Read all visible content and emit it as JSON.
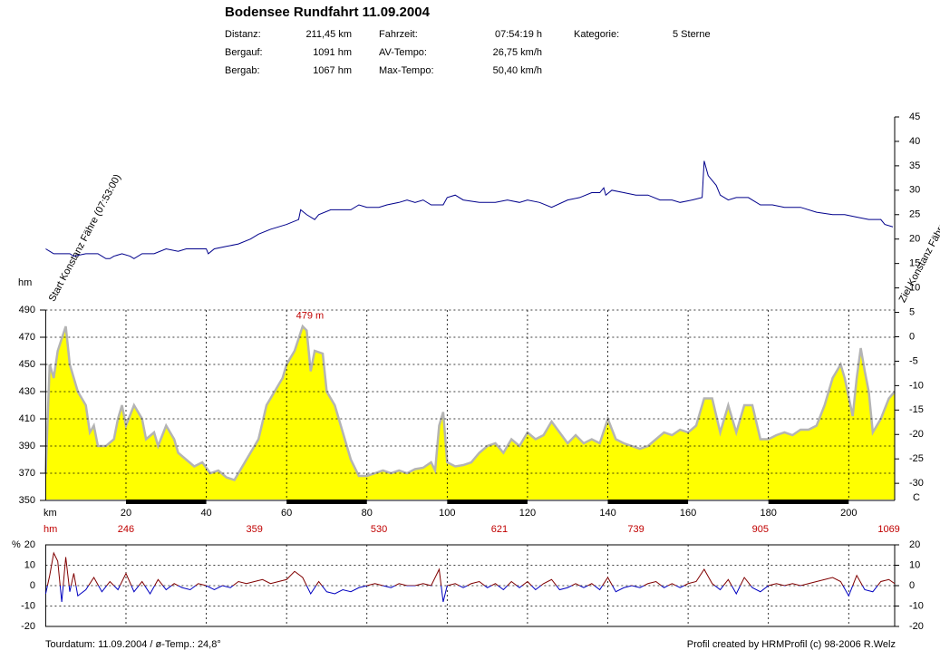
{
  "header": {
    "title": "Bodensee Rundfahrt 11.09.2004",
    "stats": [
      [
        {
          "label": "Distanz:",
          "value": "211,45 km"
        },
        {
          "label": "Fahrzeit:",
          "value": "07:54:19 h"
        },
        {
          "label": "Kategorie:",
          "value": "5 Sterne"
        }
      ],
      [
        {
          "label": "Bergauf:",
          "value": "1091 hm"
        },
        {
          "label": "AV-Tempo:",
          "value": "26,75 km/h"
        }
      ],
      [
        {
          "label": "Bergab:",
          "value": "1067 hm"
        },
        {
          "label": "Max-Tempo:",
          "value": "50,40 km/h"
        }
      ]
    ]
  },
  "start_label": "Start Konstanz Fähre (07:53:00)",
  "end_label": "Ziel Konstanz Fähre",
  "chart_data": [
    {
      "type": "area",
      "ylabel": "hm",
      "xlabel": "km",
      "color": "#ffff00",
      "line_color": "#b4b4b4",
      "xlim": [
        0,
        211.45
      ],
      "xticks": [
        20,
        40,
        60,
        80,
        100,
        120,
        140,
        160,
        180,
        200
      ],
      "ylim": [
        350,
        490
      ],
      "yticks": [
        350,
        370,
        390,
        410,
        430,
        450,
        470,
        490
      ],
      "grid": true,
      "x": [
        0,
        1,
        2,
        3,
        5,
        6,
        8,
        10,
        11,
        12,
        13,
        15,
        17,
        18,
        19,
        20,
        22,
        24,
        25,
        27,
        28,
        30,
        32,
        33,
        35,
        37,
        39,
        41,
        43,
        45,
        47,
        49,
        51,
        53,
        55,
        57,
        59,
        60,
        62,
        64,
        65,
        66,
        67,
        69,
        70,
        72,
        74,
        76,
        78,
        80,
        82,
        84,
        86,
        88,
        90,
        92,
        94,
        96,
        97,
        98,
        99,
        100,
        102,
        104,
        106,
        108,
        110,
        112,
        114,
        116,
        118,
        120,
        122,
        124,
        126,
        128,
        130,
        132,
        134,
        136,
        138,
        140,
        142,
        144,
        146,
        148,
        150,
        152,
        154,
        156,
        158,
        160,
        162,
        164,
        166,
        168,
        170,
        172,
        174,
        176,
        178,
        180,
        182,
        184,
        186,
        188,
        190,
        192,
        194,
        196,
        198,
        199,
        201,
        202,
        203,
        204,
        205,
        206,
        208,
        210,
        211.45
      ],
      "values": [
        370,
        450,
        440,
        460,
        478,
        450,
        430,
        420,
        400,
        405,
        390,
        390,
        395,
        410,
        420,
        405,
        420,
        410,
        395,
        400,
        390,
        405,
        395,
        385,
        380,
        375,
        378,
        370,
        372,
        367,
        365,
        375,
        385,
        395,
        420,
        430,
        440,
        450,
        460,
        478,
        475,
        445,
        460,
        458,
        430,
        420,
        400,
        380,
        368,
        368,
        370,
        372,
        370,
        372,
        370,
        373,
        374,
        378,
        372,
        405,
        415,
        378,
        375,
        376,
        378,
        385,
        390,
        392,
        385,
        395,
        390,
        400,
        395,
        398,
        408,
        400,
        392,
        398,
        392,
        395,
        392,
        410,
        395,
        392,
        390,
        388,
        390,
        395,
        400,
        398,
        402,
        400,
        405,
        425,
        425,
        400,
        420,
        400,
        420,
        420,
        395,
        395,
        398,
        400,
        398,
        402,
        402,
        405,
        420,
        440,
        450,
        440,
        412,
        440,
        462,
        445,
        430,
        400,
        410,
        425,
        430
      ],
      "annotation": {
        "text": "479 m",
        "km": 64,
        "hm": 479
      },
      "climb_marks": {
        "label": "hm",
        "km": [
          20,
          52,
          83,
          113,
          147,
          178,
          210
        ],
        "values": [
          246,
          359,
          530,
          621,
          739,
          905,
          1069
        ]
      }
    },
    {
      "type": "line",
      "color": "#00008b",
      "y2label": "C",
      "xlim": [
        0,
        211.45
      ],
      "y2lim": [
        -33.5,
        45
      ],
      "y2ticks": [
        45,
        40,
        35,
        30,
        25,
        20,
        15,
        10,
        5,
        0,
        -5,
        -10,
        -15,
        -20,
        -25,
        -30
      ],
      "series": [
        {
          "axis": "y2",
          "x": [
            0,
            1,
            2,
            6,
            7,
            10,
            13,
            14,
            15,
            16,
            17,
            19,
            21,
            22,
            24,
            27,
            30,
            33,
            35,
            40,
            40.5,
            42,
            45,
            48,
            51,
            53,
            56,
            60,
            63,
            63.5,
            65,
            67,
            68,
            71,
            76,
            78,
            80,
            83,
            85,
            88,
            90,
            92,
            94,
            96,
            99,
            100,
            102,
            104,
            108,
            112,
            115,
            118,
            120,
            123,
            126,
            130,
            133,
            136,
            138,
            139,
            139.5,
            141,
            144,
            147,
            150,
            153,
            156,
            158,
            161,
            163.5,
            164,
            165,
            166,
            167,
            168,
            170,
            172,
            175,
            178,
            181,
            184,
            188,
            192,
            196,
            199,
            202,
            205,
            208,
            209,
            211
          ],
          "values": [
            18,
            17.5,
            17,
            17,
            16.5,
            17,
            17,
            16.5,
            16,
            16,
            16.5,
            17,
            16.5,
            16,
            17,
            17,
            18,
            17.5,
            18,
            18,
            17,
            18,
            18.5,
            19,
            20,
            21,
            22,
            23,
            24,
            26,
            25,
            24,
            25,
            26,
            26,
            27,
            26.5,
            26.5,
            27,
            27.5,
            28,
            27.5,
            28,
            27,
            27,
            28.5,
            29,
            28,
            27.5,
            27.5,
            28,
            27.5,
            28,
            27.5,
            26.5,
            28,
            28.5,
            29.5,
            29.5,
            30.5,
            29,
            30,
            29.5,
            29,
            29,
            28,
            28,
            27.5,
            28,
            28.5,
            36,
            33,
            32,
            31,
            29,
            28,
            28.5,
            28.5,
            27,
            27,
            26.5,
            26.5,
            25.5,
            25,
            25,
            24.5,
            24,
            24,
            23,
            22.5
          ]
        }
      ]
    },
    {
      "type": "gradient",
      "ylabel": "%",
      "color": "#800000",
      "negative_color": "#0000c0",
      "xlim": [
        0,
        211.45
      ],
      "ylim": [
        -20,
        20
      ],
      "yticks": [
        20,
        10,
        0,
        -10,
        -20
      ],
      "y2lim": [
        -20,
        20
      ],
      "y2ticks": [
        20,
        10,
        0,
        -10,
        -20
      ],
      "grid": true,
      "x": [
        0,
        1,
        2,
        3,
        4,
        5,
        6,
        7,
        8,
        10,
        12,
        14,
        16,
        18,
        20,
        22,
        24,
        26,
        28,
        30,
        32,
        34,
        36,
        38,
        40,
        42,
        44,
        46,
        48,
        50,
        52,
        54,
        56,
        58,
        60,
        62,
        64,
        66,
        68,
        70,
        72,
        74,
        76,
        78,
        80,
        82,
        84,
        86,
        88,
        90,
        92,
        94,
        96,
        98,
        99,
        100,
        102,
        104,
        106,
        108,
        110,
        112,
        114,
        116,
        118,
        120,
        122,
        124,
        126,
        128,
        130,
        132,
        134,
        136,
        138,
        140,
        142,
        144,
        146,
        148,
        150,
        152,
        154,
        156,
        158,
        160,
        162,
        164,
        166,
        168,
        170,
        172,
        174,
        176,
        178,
        180,
        182,
        184,
        186,
        188,
        190,
        192,
        194,
        196,
        198,
        200,
        202,
        204,
        206,
        208,
        210,
        211.45
      ],
      "values": [
        -4,
        5,
        16,
        12,
        -8,
        14,
        -3,
        6,
        -5,
        -2,
        4,
        -3,
        2,
        -2,
        6,
        -3,
        2,
        -4,
        3,
        -2,
        1,
        -1,
        -2,
        1,
        0,
        -2,
        0,
        -1,
        2,
        1,
        2,
        3,
        1,
        2,
        3,
        7,
        4,
        -4,
        2,
        -3,
        -4,
        -2,
        -3,
        -1,
        0,
        1,
        0,
        -1,
        1,
        0,
        0,
        1,
        0,
        8,
        -8,
        0,
        1,
        -1,
        1,
        2,
        -1,
        1,
        -2,
        2,
        -1,
        2,
        -2,
        1,
        3,
        -2,
        -1,
        1,
        -1,
        1,
        -2,
        4,
        -3,
        -1,
        0,
        -1,
        1,
        2,
        -1,
        1,
        -1,
        1,
        2,
        8,
        1,
        -2,
        3,
        -4,
        4,
        -1,
        -3,
        0,
        1,
        0,
        1,
        0,
        1,
        2,
        3,
        4,
        2,
        -5,
        5,
        -2,
        -3,
        2,
        3,
        1
      ]
    }
  ],
  "footer": {
    "left": "Tourdatum: 11.09.2004  /  ø-Temp.: 24,8°",
    "right": "Profil created by HRMProfil (c) 98-2006 R.Welz"
  }
}
